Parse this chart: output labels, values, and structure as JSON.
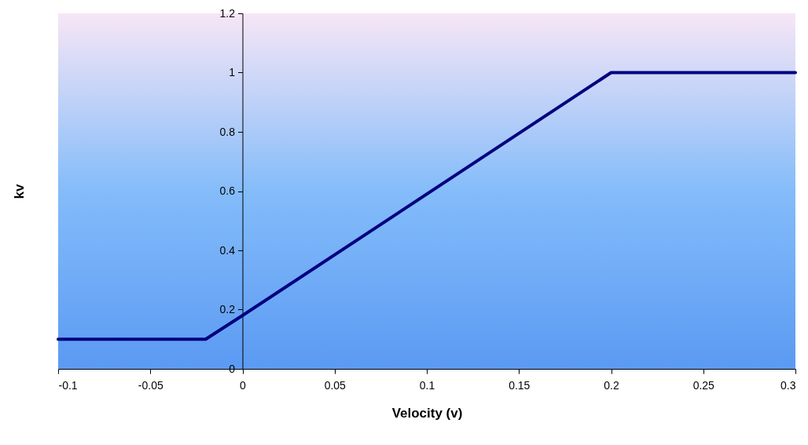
{
  "chart_data": {
    "type": "line",
    "xlabel": "Velocity (v)",
    "ylabel": "kv",
    "x": [
      -0.1,
      -0.02,
      0,
      0.2,
      0.3
    ],
    "values": [
      0.1,
      0.1,
      0.18,
      1,
      1
    ],
    "color": "#000080",
    "xlim": [
      -0.1,
      0.3
    ],
    "ylim": [
      0,
      1.2
    ],
    "xticks": [
      -0.1,
      -0.05,
      0,
      0.05,
      0.1,
      0.15,
      0.2,
      0.25,
      0.3
    ],
    "yticks": [
      0,
      0.2,
      0.4,
      0.6,
      0.8,
      1,
      1.2
    ]
  }
}
